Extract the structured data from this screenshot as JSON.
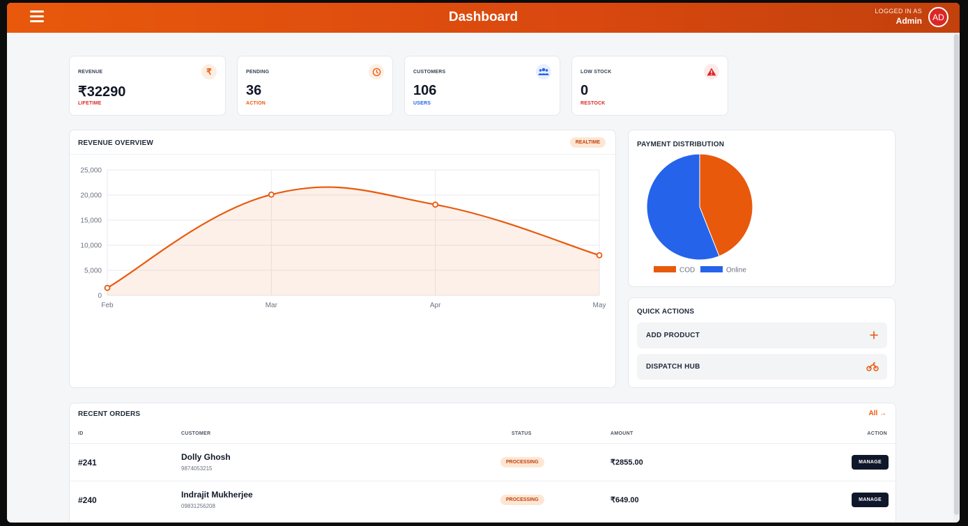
{
  "header": {
    "title": "Dashboard",
    "logged_in_label": "LOGGED IN AS",
    "user_name": "Admin",
    "avatar_initials": "AD"
  },
  "stats": [
    {
      "label": "REVENUE",
      "value": "₹32290",
      "sub": "LIFETIME",
      "sub_color": "#dc2626",
      "icon": "rupee-icon",
      "icon_glyph": "₹",
      "icon_color": "#e8590c",
      "icon_bg": "#fdeee3"
    },
    {
      "label": "PENDING",
      "value": "36",
      "sub": "ACTION",
      "sub_color": "#ea580c",
      "icon": "clock-icon",
      "icon_glyph": "",
      "icon_color": "#e8590c",
      "icon_bg": "#fdeee3"
    },
    {
      "label": "CUSTOMERS",
      "value": "106",
      "sub": "USERS",
      "sub_color": "#2563eb",
      "icon": "users-icon",
      "icon_glyph": "",
      "icon_color": "#2563eb",
      "icon_bg": "#e8effd"
    },
    {
      "label": "LOW STOCK",
      "value": "0",
      "sub": "RESTOCK",
      "sub_color": "#dc2626",
      "icon": "warning-icon",
      "icon_glyph": "",
      "icon_color": "#dc2626",
      "icon_bg": "#fdeaea"
    }
  ],
  "revenue_overview": {
    "title": "REVENUE OVERVIEW",
    "badge": "REALTIME"
  },
  "payment_distribution": {
    "title": "PAYMENT DISTRIBUTION"
  },
  "chart_data": [
    {
      "type": "area",
      "title": "",
      "categories": [
        "Feb",
        "Mar",
        "Apr",
        "May"
      ],
      "series": [
        {
          "values": [
            1500,
            20100,
            18100,
            8000
          ],
          "color": "#e8590c"
        }
      ],
      "ylim": [
        0,
        25000
      ],
      "yticks": [
        "25,000",
        "20,000",
        "15,000",
        "10,000",
        "5,000",
        "0"
      ],
      "ytick_values": [
        25000,
        20000,
        15000,
        10000,
        5000,
        0
      ],
      "grid": true
    },
    {
      "type": "pie",
      "title": "",
      "labels": [
        "COD",
        "Online"
      ],
      "values": [
        44,
        56
      ],
      "colors": [
        "#e8590c",
        "#2563eb"
      ],
      "legend": "bottom"
    }
  ],
  "quick_actions": {
    "title": "QUICK ACTIONS",
    "items": [
      {
        "label": "ADD PRODUCT",
        "icon": "plus-icon"
      },
      {
        "label": "DISPATCH HUB",
        "icon": "motorbike-icon"
      }
    ]
  },
  "orders": {
    "title": "RECENT ORDERS",
    "all_link": "All →",
    "columns": [
      "ID",
      "CUSTOMER",
      "STATUS",
      "AMOUNT",
      "ACTION"
    ],
    "rows": [
      {
        "id": "#241",
        "customer": "Dolly Ghosh",
        "phone": "9874053215",
        "status": "PROCESSING",
        "amount": "₹2855.00",
        "action": "MANAGE"
      },
      {
        "id": "#240",
        "customer": "Indrajit Mukherjee",
        "phone": "09831256208",
        "status": "PROCESSING",
        "amount": "₹649.00",
        "action": "MANAGE"
      }
    ]
  }
}
